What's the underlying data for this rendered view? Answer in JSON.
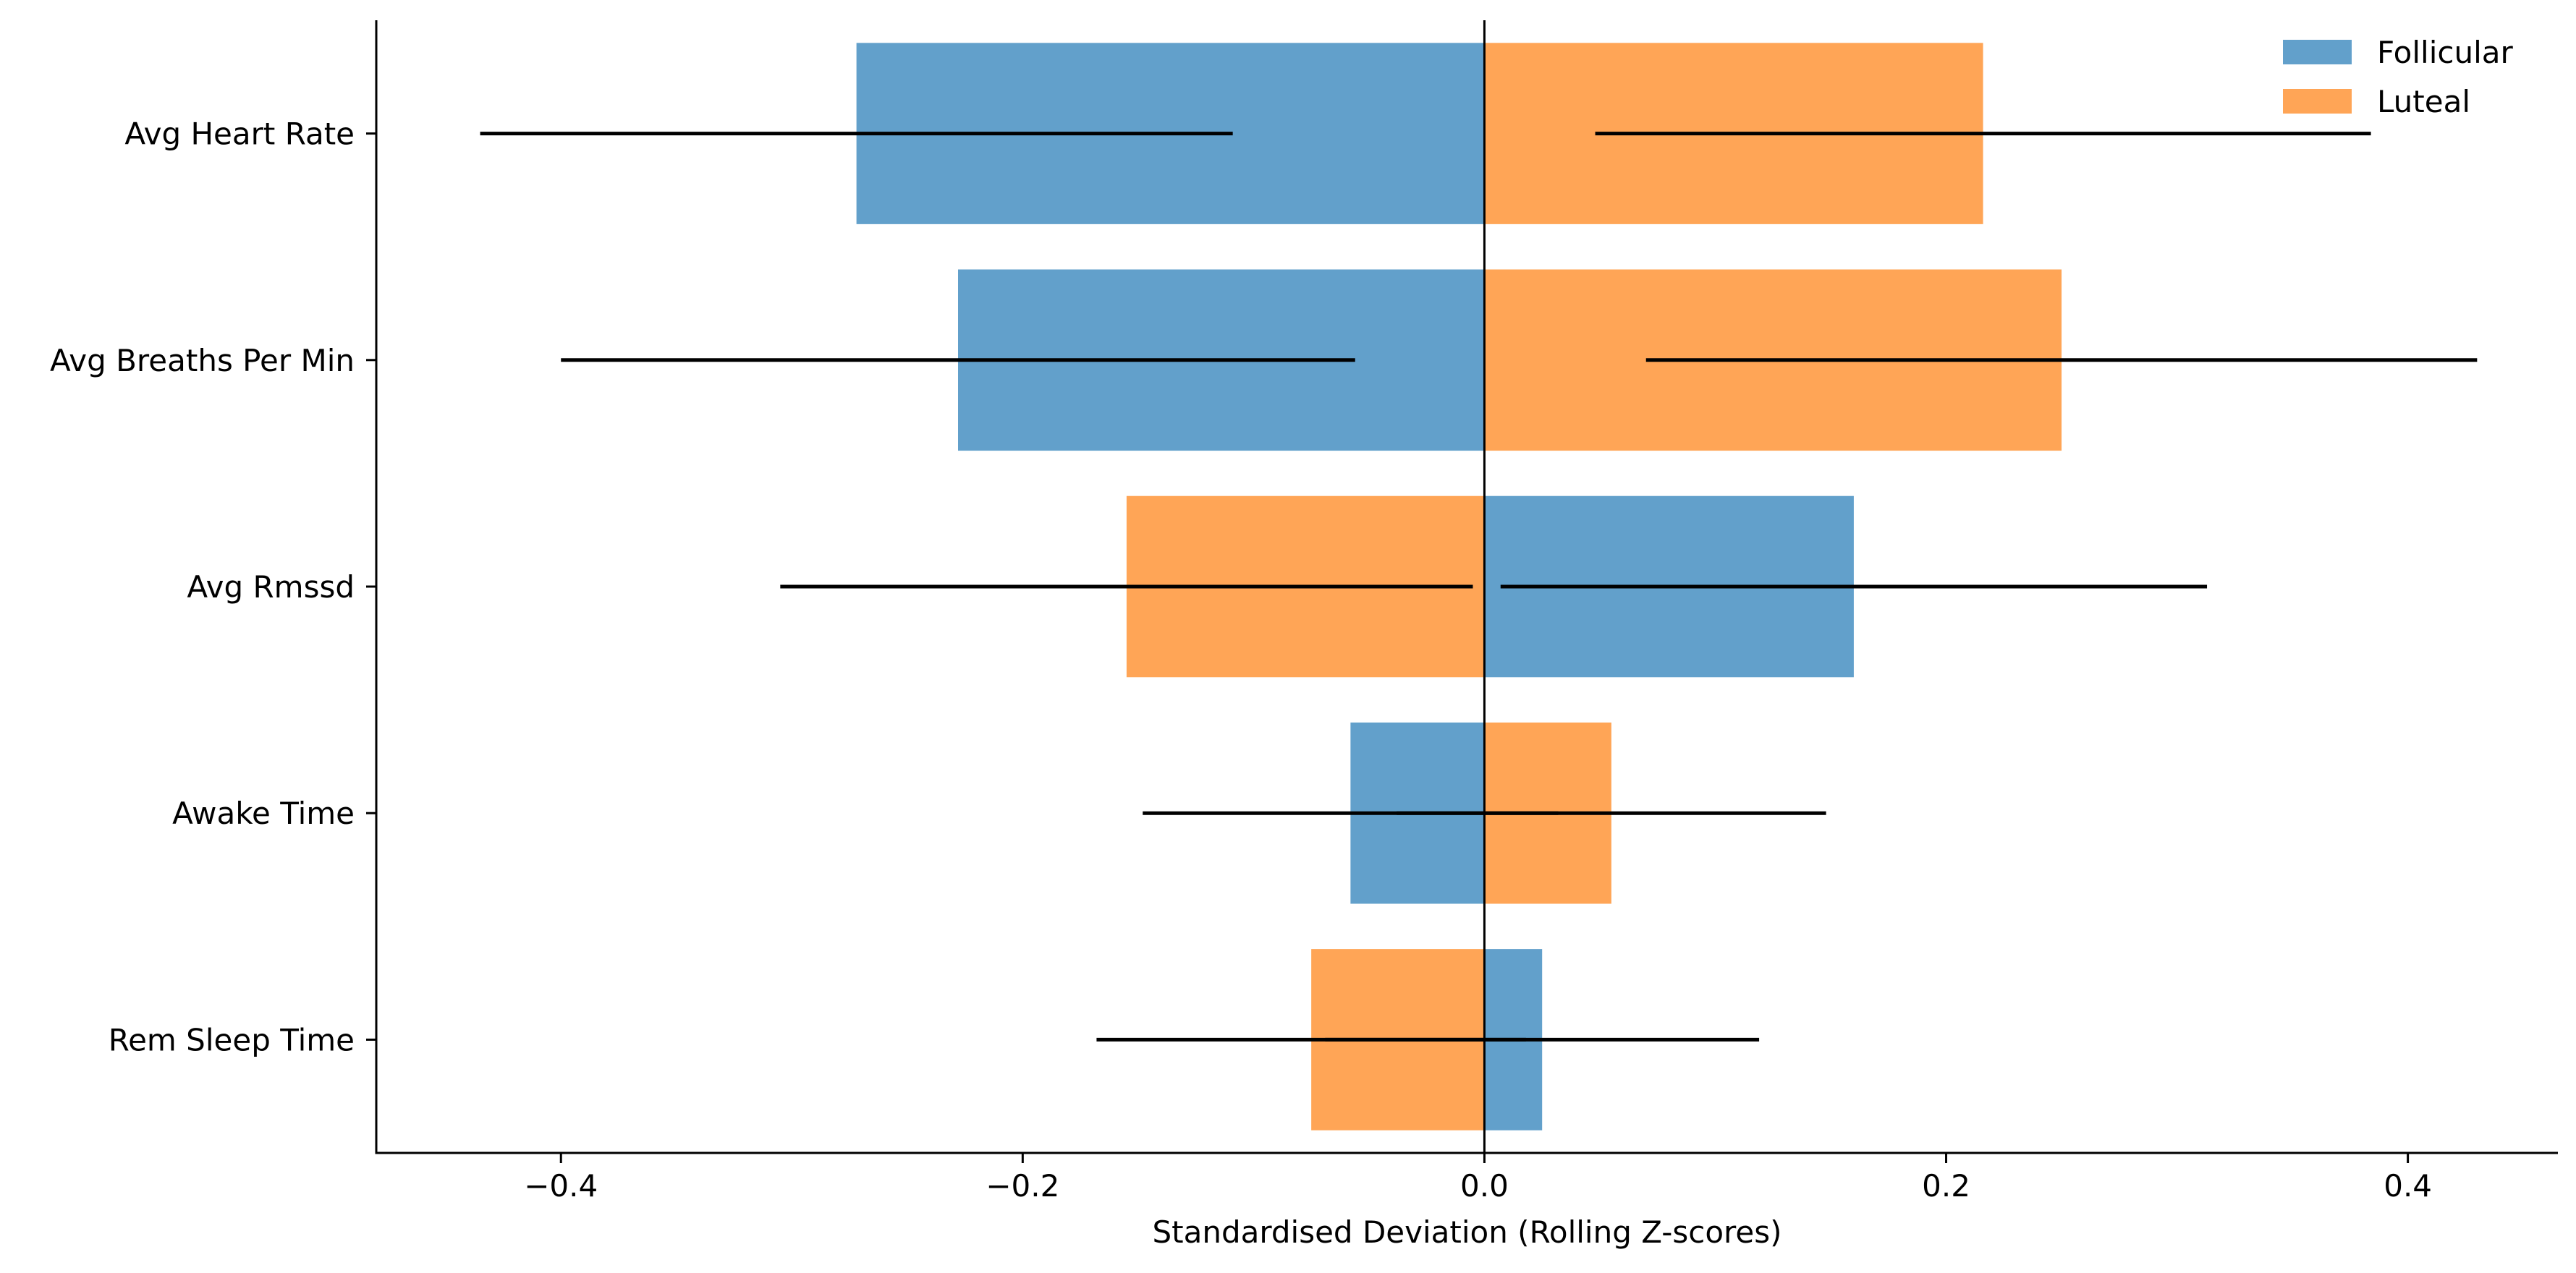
{
  "chart_data": {
    "type": "bar",
    "orientation": "horizontal",
    "title": "",
    "xlabel": "Standardised Deviation (Rolling Z-scores)",
    "ylabel": "",
    "xlim": [
      -0.48,
      0.465
    ],
    "xticks": [
      -0.4,
      -0.2,
      0.0,
      0.2,
      0.4
    ],
    "xtick_labels": [
      "−0.4",
      "−0.2",
      "0.0",
      "0.2",
      "0.4"
    ],
    "grid": false,
    "legend_position": "top-right",
    "categories": [
      "Avg Heart Rate",
      "Avg Breaths Per Min",
      "Avg Rmssd",
      "Awake Time",
      "Rem Sleep Time"
    ],
    "series": [
      {
        "name": "Follicular",
        "color": "#62a0cb",
        "values": [
          -0.272,
          -0.228,
          0.16,
          -0.058,
          0.025
        ],
        "error": [
          0.163,
          0.172,
          0.153,
          0.09,
          0.094
        ]
      },
      {
        "name": "Luteal",
        "color": "#ffa556",
        "values": [
          0.216,
          0.25,
          -0.155,
          0.055,
          -0.075
        ],
        "error": [
          0.168,
          0.18,
          0.15,
          0.093,
          0.093
        ]
      }
    ]
  }
}
